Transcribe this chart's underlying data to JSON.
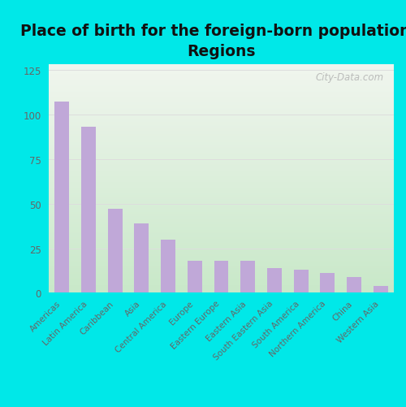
{
  "title": "Place of birth for the foreign-born population -\nRegions",
  "categories": [
    "Americas",
    "Latin America",
    "Caribbean",
    "Asia",
    "Central America",
    "Europe",
    "Eastern Europe",
    "Eastern Asia",
    "South Eastern Asia",
    "South America",
    "Northern America",
    "China",
    "Western Asia"
  ],
  "values": [
    107,
    93,
    47,
    39,
    30,
    18,
    18,
    18,
    14,
    13,
    11,
    9,
    4
  ],
  "bar_color": "#c0a8d8",
  "background_outer": "#00e8e8",
  "background_inner_top": "#f0f5ee",
  "background_inner_bottom": "#c8e8c8",
  "yticks": [
    0,
    25,
    50,
    75,
    100,
    125
  ],
  "ylim": [
    0,
    128
  ],
  "title_fontsize": 13.5,
  "tick_label_fontsize": 7.5,
  "watermark_text": "City-Data.com",
  "gridline_color": "#dddddd"
}
